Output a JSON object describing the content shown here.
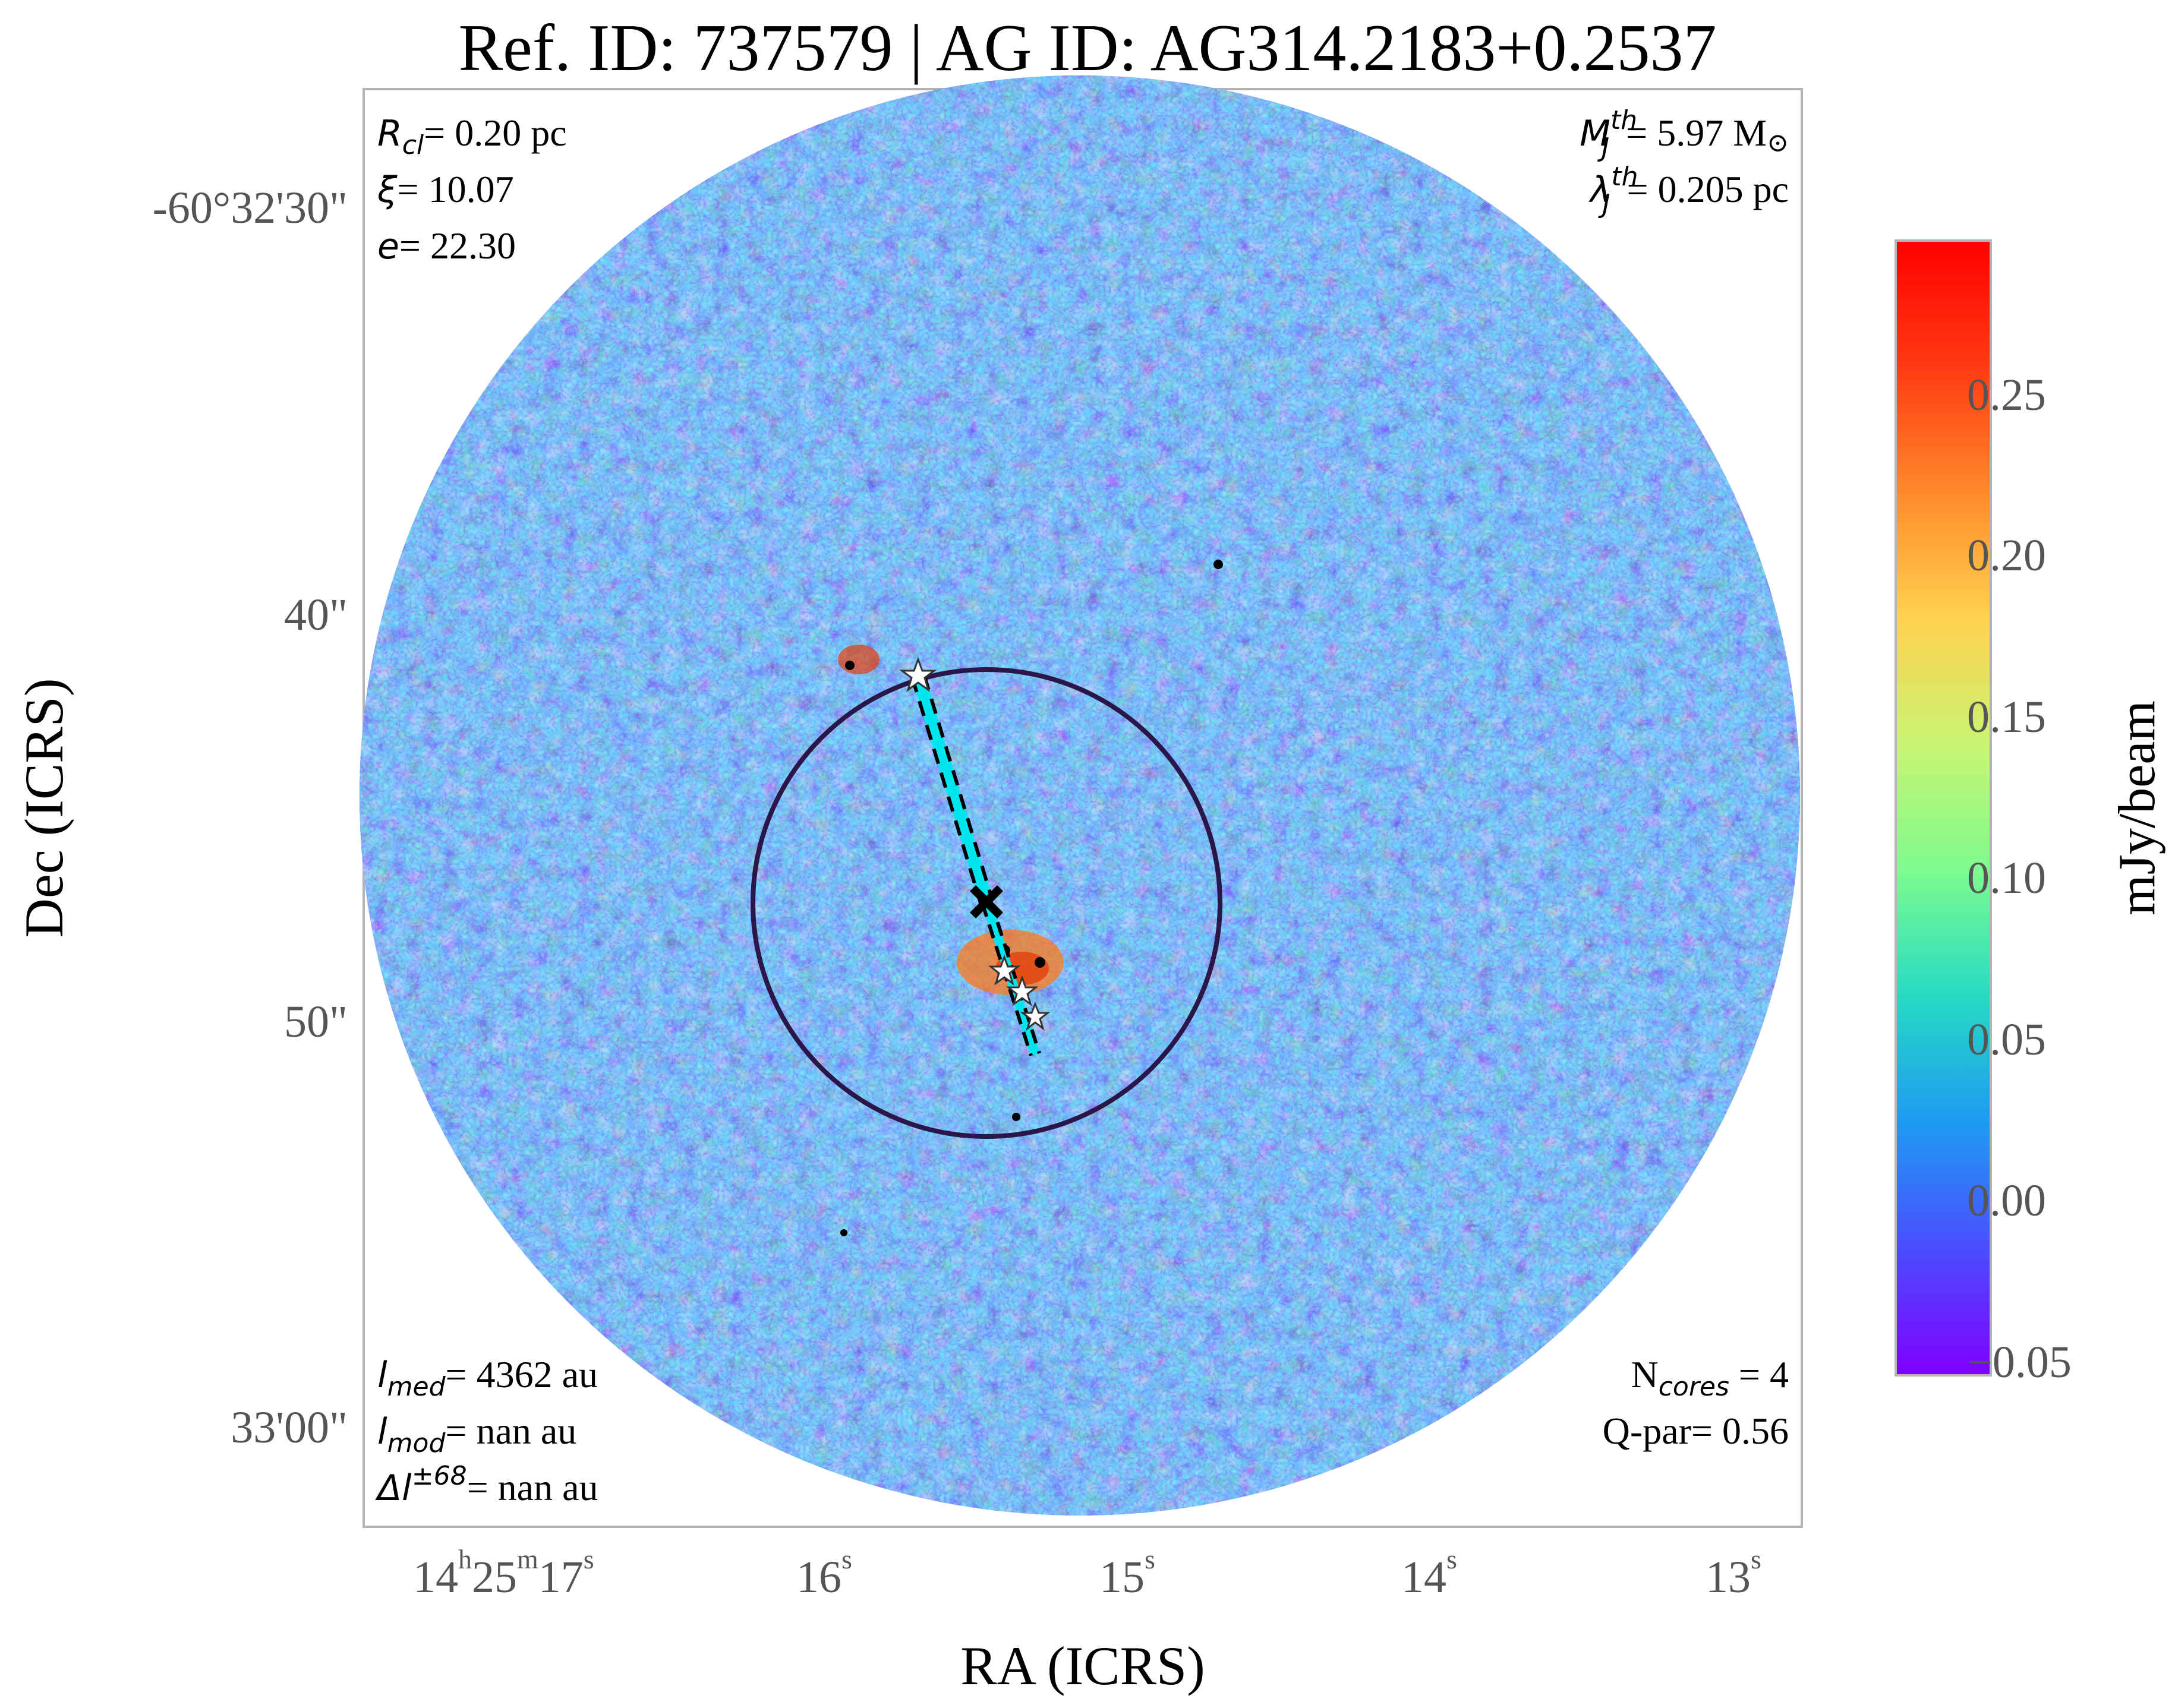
{
  "title": "Ref. ID: 737579 | AG ID: AG314.2183+0.2537",
  "axes": {
    "xlabel": "RA (ICRS)",
    "ylabel": "Dec (ICRS)",
    "xticks": [
      {
        "main": "14",
        "h": "h",
        "mid": "25",
        "m": "m",
        "sec": "17",
        "s": "s"
      },
      {
        "main": "16",
        "s": "s"
      },
      {
        "main": "15",
        "s": "s"
      },
      {
        "main": "14",
        "s": "s"
      },
      {
        "main": "13",
        "s": "s"
      }
    ],
    "yticks": [
      "-60°32'30\"",
      "40\"",
      "50\"",
      "33'00\""
    ]
  },
  "annotations": {
    "top_left": {
      "rcl": {
        "sym": "R",
        "sub": "cl",
        "val": "= 0.20 pc"
      },
      "xi": {
        "sym": "ξ",
        "val": "= 10.07"
      },
      "e": {
        "sym": "e",
        "val": "= 22.30"
      }
    },
    "top_right": {
      "mj": {
        "sym": "M",
        "sub": "J",
        "sup": "th",
        "val": "= 5.97 M",
        "sun": "⊙"
      },
      "lj": {
        "sym": "λ",
        "sub": "J",
        "sup": "th",
        "val": "= 0.205 pc"
      }
    },
    "bottom_left": {
      "lmed": {
        "sym": "l",
        "sub": "med",
        "val": "= 4362 au"
      },
      "lmod": {
        "sym": "l",
        "sub": "mod",
        "val": "= nan au"
      },
      "dl": {
        "sym": "Δl",
        "sup": "±68",
        "val": "= nan au"
      }
    },
    "bottom_right": {
      "ncores": {
        "sym": "N",
        "sub": "cores",
        "val": " = 4"
      },
      "qpar": "Q-par= 0.56"
    }
  },
  "colorbar": {
    "label": "mJy/beam",
    "ticks": [
      "0.25",
      "0.20",
      "0.15",
      "0.10",
      "0.05",
      "0.00",
      "−0.05"
    ],
    "colormap": [
      "#7f00ff",
      "#4b4dff",
      "#1e9af2",
      "#26dac4",
      "#7cfb8f",
      "#c8f472",
      "#ffd24f",
      "#ff8a2b",
      "#ff3a12",
      "#ff0000"
    ]
  },
  "markers": {
    "cross_color": "#000000",
    "star_color": "#ffffff",
    "line_color": "#00e5ee",
    "circle_color": "#2a1648"
  }
}
